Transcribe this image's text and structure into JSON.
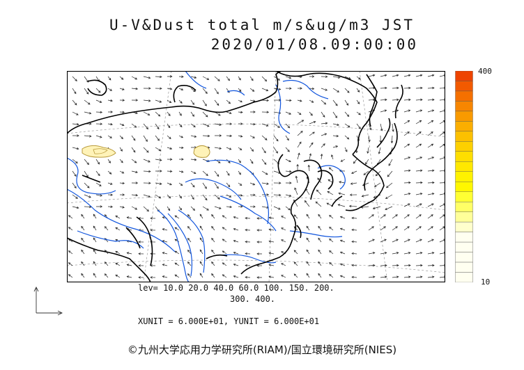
{
  "title": {
    "line1": "U-V&Dust total m/s&ug/m3 JST",
    "line2": "2020/01/08.09:00:00"
  },
  "scale": {
    "max_label": "400",
    "min_label": "10",
    "colors": [
      "#ee4400",
      "#f25a00",
      "#f57000",
      "#f78600",
      "#f99a00",
      "#fbae00",
      "#fcc000",
      "#fdd000",
      "#fede00",
      "#ffe800",
      "#fff200",
      "#fff700",
      "#ffff33",
      "#ffff66",
      "#ffff99",
      "#ffffcc"
    ]
  },
  "legend": {
    "lev_line1": "lev= 10.0 20.0 40.0 60.0 100. 150. 200.",
    "lev_line2": "300. 400.",
    "units_line": "XUNIT = 6.000E+01, YUNIT = 6.000E+01"
  },
  "copyright": "©九州大学応用力学研究所(RIAM)/国立環境研究所(NIES)",
  "map_colors": {
    "frame": "#000000",
    "coast": "#000000",
    "river": "#1155dd",
    "grid": "#888888",
    "arrow": "#222222",
    "dust_fill": "#fff3b8",
    "dust_edge": "#b89a3a"
  }
}
